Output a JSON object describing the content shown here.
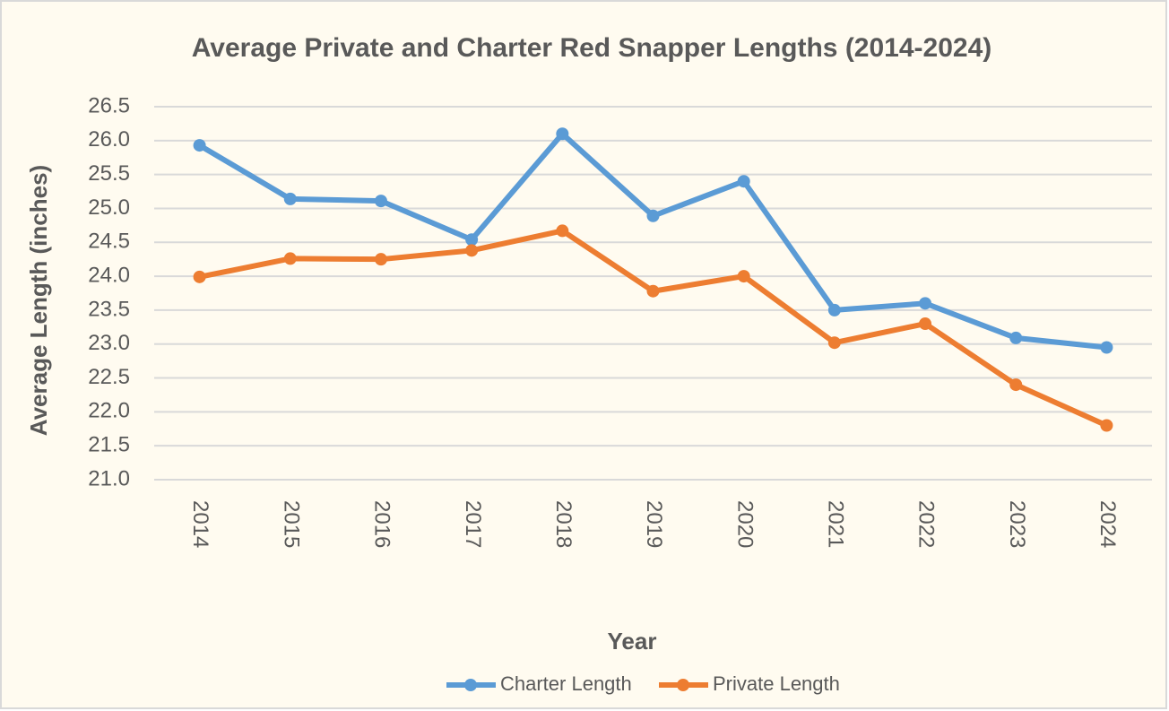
{
  "chart_data": {
    "type": "line",
    "title": "Average Private and Charter Red Snapper Lengths (2014-2024)",
    "x_label": "Year",
    "y_label": "Average Length (inches)",
    "categories": [
      "2014",
      "2015",
      "2016",
      "2017",
      "2018",
      "2019",
      "2020",
      "2021",
      "2022",
      "2023",
      "2024"
    ],
    "series": [
      {
        "name": "Charter Length",
        "color": "#5b9bd5",
        "values": [
          25.93,
          25.14,
          25.11,
          24.54,
          26.1,
          24.89,
          25.4,
          23.5,
          23.6,
          23.09,
          22.95
        ]
      },
      {
        "name": "Private Length",
        "color": "#ed7d31",
        "values": [
          23.99,
          24.26,
          24.25,
          24.38,
          24.67,
          23.78,
          24.0,
          23.02,
          23.3,
          22.4,
          21.8
        ]
      }
    ],
    "ylim": [
      21,
      26.5
    ],
    "yticks": [
      {
        "value": 21,
        "label": "21.0"
      },
      21.5,
      {
        "value": 22,
        "label": "22.0"
      },
      22.5,
      {
        "value": 23,
        "label": "23.0"
      },
      23.5,
      {
        "value": 24,
        "label": "24.0"
      },
      24.5,
      {
        "value": 25,
        "label": "25.0"
      },
      25.5,
      {
        "value": 26,
        "label": "26.0"
      },
      26.5
    ],
    "grid": true,
    "legend": "bottom"
  }
}
